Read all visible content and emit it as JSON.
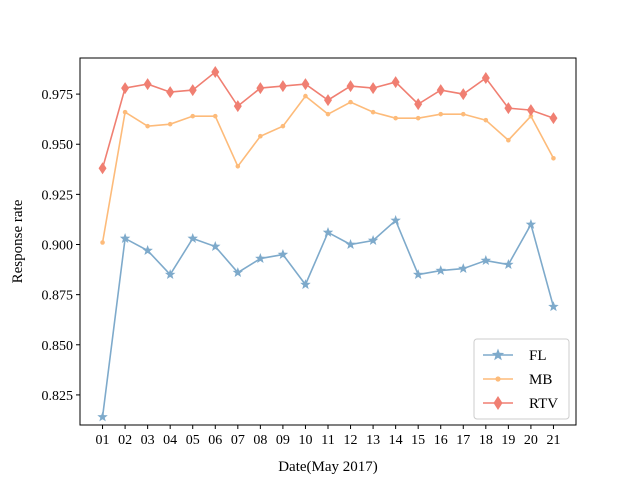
{
  "chart_data": {
    "type": "line",
    "categories": [
      "01",
      "02",
      "03",
      "04",
      "05",
      "06",
      "07",
      "08",
      "09",
      "10",
      "11",
      "12",
      "13",
      "14",
      "15",
      "16",
      "17",
      "18",
      "19",
      "20",
      "21"
    ],
    "xlabel": "Date(May 2017)",
    "ylabel": "Response rate",
    "ylim": [
      0.81,
      0.993
    ],
    "yticks": [
      0.825,
      0.85,
      0.875,
      0.9,
      0.925,
      0.95,
      0.975
    ],
    "ytick_labels": [
      "0.825",
      "0.850",
      "0.875",
      "0.900",
      "0.925",
      "0.950",
      "0.975"
    ],
    "grid": false,
    "legend_position": "bottom-right",
    "series": [
      {
        "name": "FL",
        "color": "#7eaacb",
        "marker": "star",
        "values": [
          0.814,
          0.903,
          0.897,
          0.885,
          0.903,
          0.899,
          0.886,
          0.893,
          0.895,
          0.88,
          0.906,
          0.9,
          0.902,
          0.912,
          0.885,
          0.887,
          0.888,
          0.892,
          0.89,
          0.91,
          0.869
        ]
      },
      {
        "name": "MB",
        "color": "#fdbb7a",
        "marker": "point",
        "values": [
          0.901,
          0.966,
          0.959,
          0.96,
          0.964,
          0.964,
          0.939,
          0.954,
          0.959,
          0.974,
          0.965,
          0.971,
          0.966,
          0.963,
          0.963,
          0.965,
          0.965,
          0.962,
          0.952,
          0.964,
          0.943
        ]
      },
      {
        "name": "RTV",
        "color": "#f07f72",
        "marker": "diamond",
        "values": [
          0.938,
          0.978,
          0.98,
          0.976,
          0.977,
          0.986,
          0.969,
          0.978,
          0.979,
          0.98,
          0.972,
          0.979,
          0.978,
          0.981,
          0.97,
          0.977,
          0.975,
          0.983,
          0.968,
          0.967,
          0.963
        ]
      }
    ]
  }
}
